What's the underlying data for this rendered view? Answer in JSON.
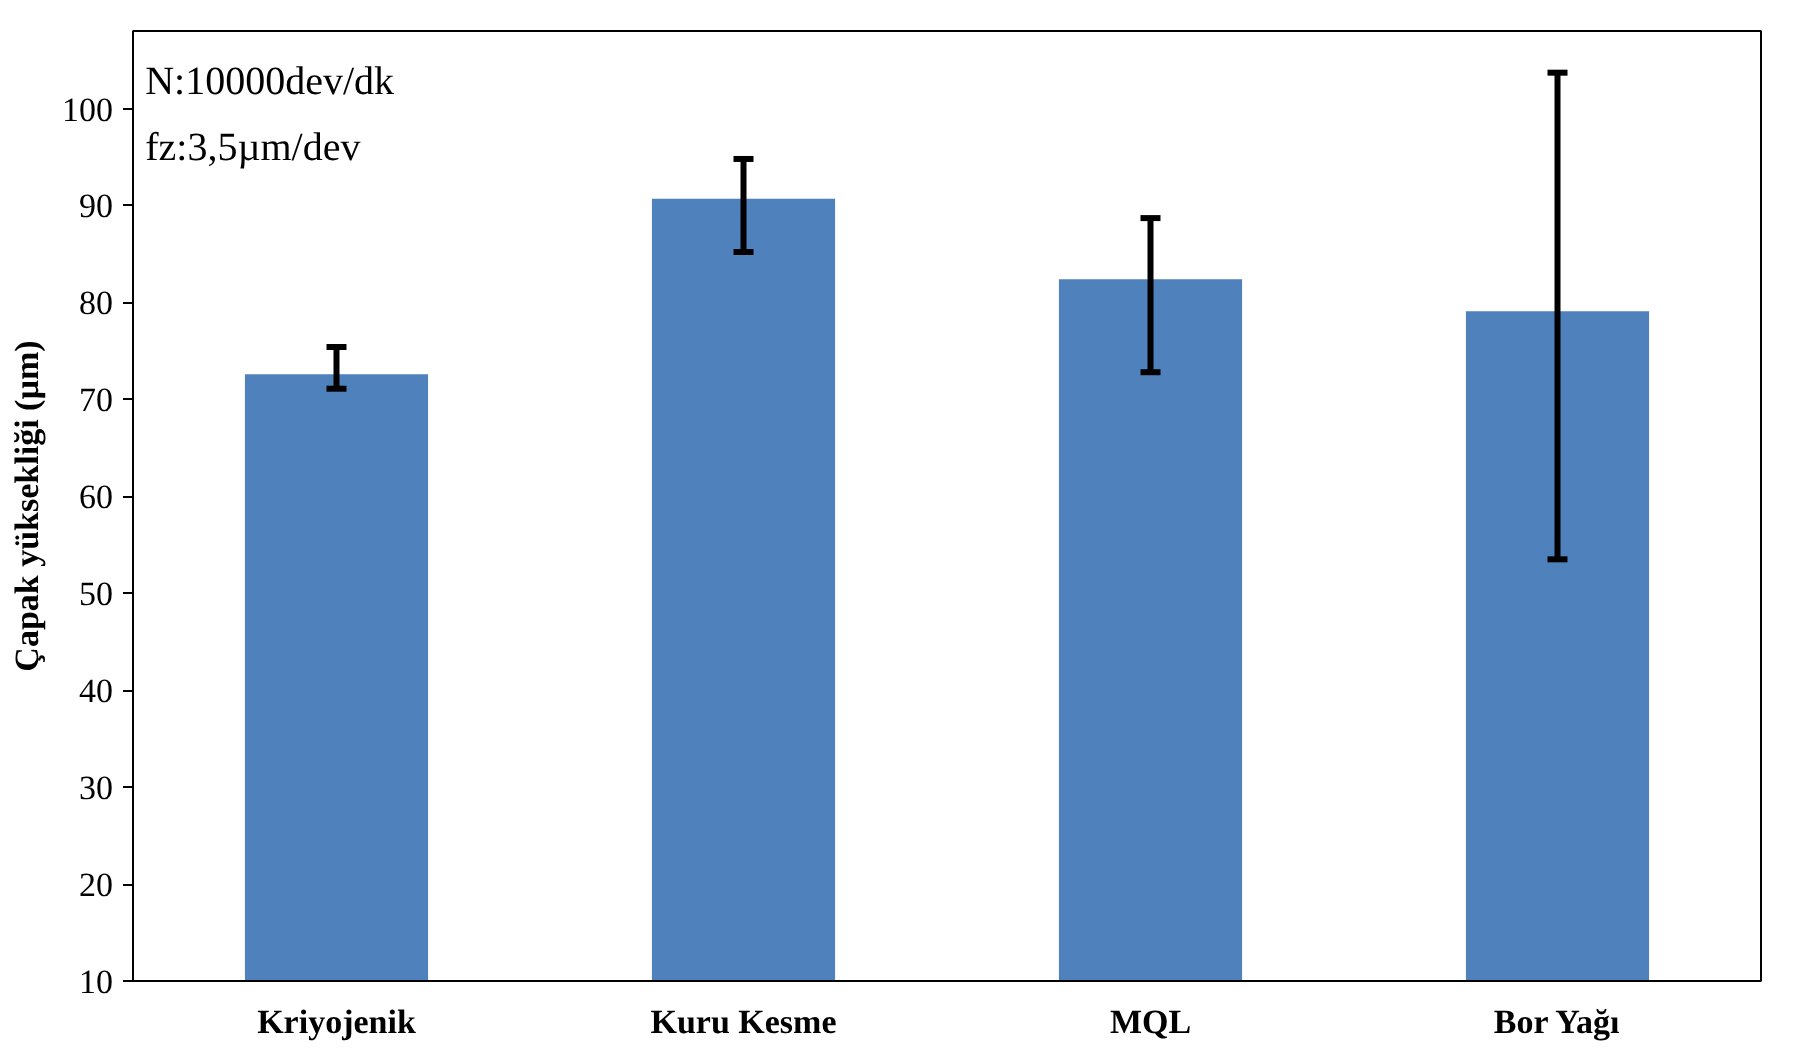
{
  "chart_data": {
    "type": "bar",
    "ylabel": "Çapak yüksekliği (µm)",
    "categories": [
      "Kriyojenik",
      "Kuru Kesme",
      "MQL",
      "Bor Yağı"
    ],
    "values": [
      72.6,
      90.7,
      82.4,
      79.1
    ],
    "color": "#4f81bd",
    "errors": [
      [
        71.1,
        75.4
      ],
      [
        85.2,
        94.8
      ],
      [
        72.8,
        88.7
      ],
      [
        53.5,
        103.7
      ]
    ],
    "ylim": [
      10,
      108
    ],
    "yticks": [
      10,
      20,
      30,
      40,
      50,
      60,
      70,
      80,
      90,
      100
    ],
    "grid": false,
    "annotations": [
      "N:10000dev/dk",
      "fz:3,5µm/dev"
    ]
  }
}
